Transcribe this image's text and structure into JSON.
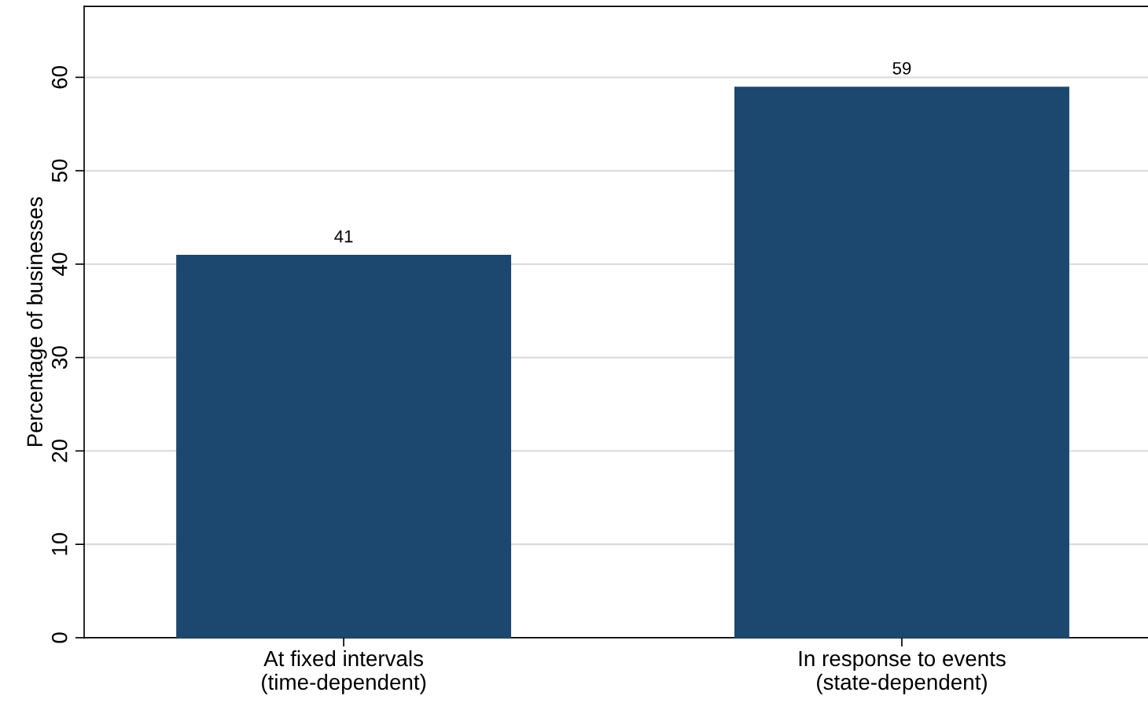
{
  "chart_data": {
    "type": "bar",
    "ylabel": "Percentage of businesses",
    "categories": [
      "At fixed intervals\n(time-dependent)",
      "In response to events\n(state-dependent)"
    ],
    "values": [
      41,
      59
    ],
    "color": "#1c476e",
    "ylim": [
      0,
      67.6
    ],
    "yticks": [
      0,
      10,
      20,
      30,
      40,
      50,
      60
    ],
    "grid": "y",
    "data_labels": true
  }
}
